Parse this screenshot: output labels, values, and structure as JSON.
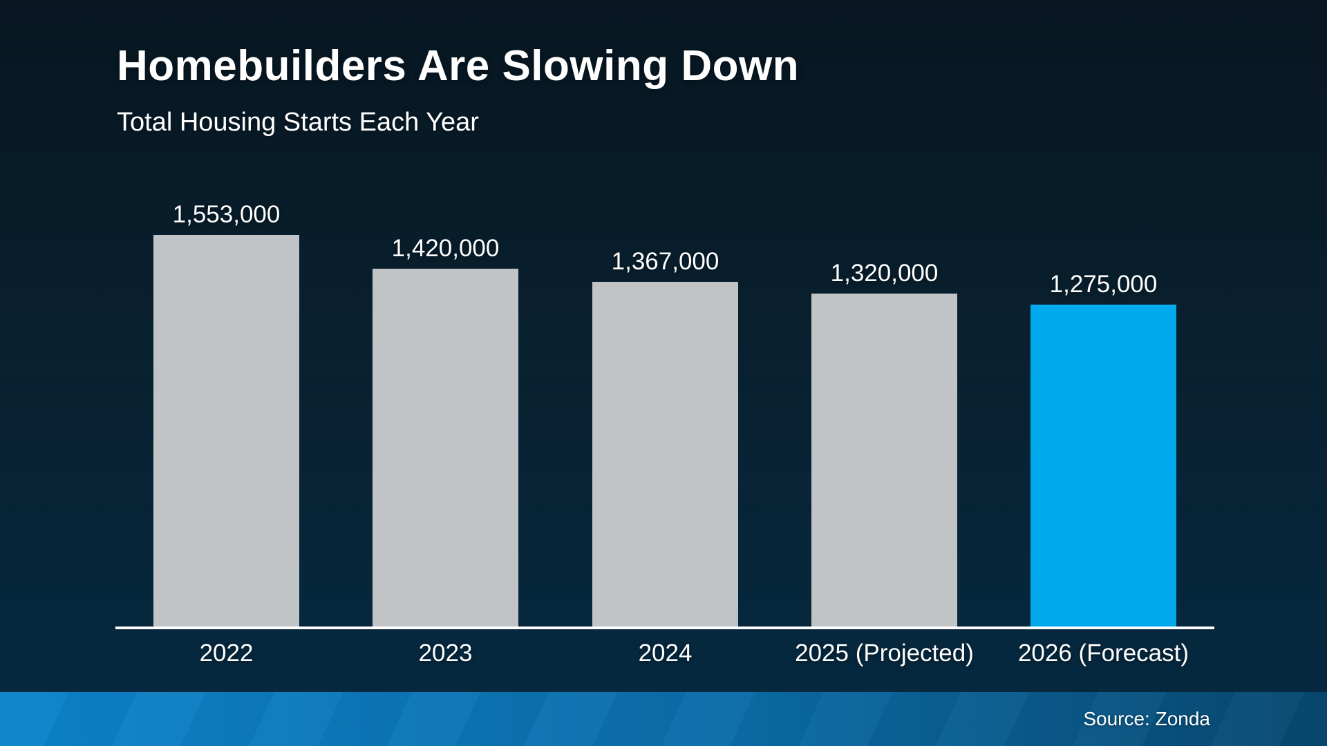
{
  "header": {
    "title": "Homebuilders Are Slowing Down",
    "subtitle": "Total Housing Starts Each Year"
  },
  "footer": {
    "source_label": "Source: Zonda"
  },
  "colors": {
    "background_top": "#071621",
    "background_bottom": "#052a42",
    "bar_default": "#c1c4c6",
    "bar_highlight": "#00aaec",
    "axis": "#ffffff",
    "text": "#ffffff",
    "band_left": "#0c84cb",
    "band_right": "#07486f"
  },
  "chart_data": {
    "type": "bar",
    "title": "Homebuilders Are Slowing Down",
    "subtitle": "Total Housing Starts Each Year",
    "categories": [
      "2022",
      "2023",
      "2024",
      "2025 (Projected)",
      "2026 (Forecast)"
    ],
    "values": [
      1553000,
      1420000,
      1367000,
      1320000,
      1275000
    ],
    "value_labels": [
      "1,553,000",
      "1,420,000",
      "1,367,000",
      "1,320,000",
      "1,275,000"
    ],
    "xlabel": "",
    "ylabel": "",
    "ylim": [
      0,
      1600000
    ],
    "grid": false,
    "legend": false,
    "highlight_index": 4,
    "highlight_meaning": "forecast bar shown in accent blue",
    "source": "Source: Zonda"
  }
}
